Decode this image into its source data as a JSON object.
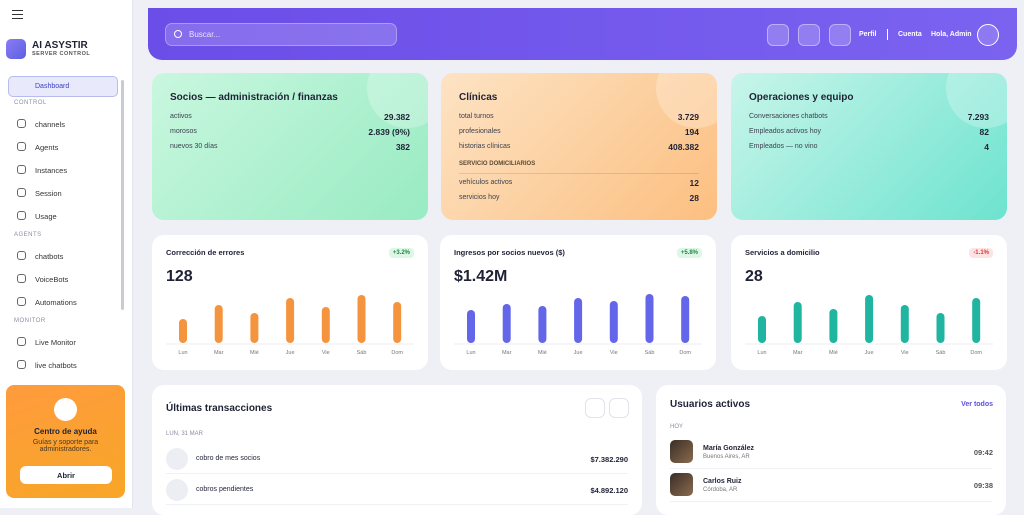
{
  "sidebar": {
    "brand": "AI ASYSTIR",
    "brand_sub": "SERVER CONTROL",
    "active": "Dashboard",
    "sections": [
      {
        "title": "CONTROL",
        "items": [
          "channels",
          "Agents",
          "Instances",
          "Session",
          "Usage"
        ]
      },
      {
        "title": "AGENTS",
        "items": [
          "chatbots",
          "VoiceBots",
          "Automations"
        ]
      },
      {
        "title": "MONITOR",
        "items": [
          "Live Monitor",
          "live chatbots"
        ]
      }
    ],
    "help": {
      "title": "Centro de ayuda",
      "text": "Guías y soporte para administradores.",
      "button": "Abrir"
    }
  },
  "header": {
    "search": "Buscar...",
    "links": [
      "Perfil",
      "Cuenta"
    ],
    "greeting": "Hola, Admin"
  },
  "stat_cards": [
    {
      "title": "Socios — administración / finanzas",
      "rows": [
        [
          "activos",
          "29.382"
        ],
        [
          "morosos",
          "2.839 (9%)"
        ],
        [
          "nuevos 30 días",
          "382"
        ]
      ]
    },
    {
      "title": "Clínicas",
      "rows": [
        [
          "total turnos",
          "3.729"
        ],
        [
          "profesionales",
          "194"
        ],
        [
          "historias clínicas",
          "408.382"
        ]
      ],
      "subsection": "SERVICIO DOMICILIARIOS",
      "subrows": [
        [
          "vehículos activos",
          "12"
        ],
        [
          "servicios hoy",
          "28"
        ]
      ]
    },
    {
      "title": "Operaciones y equipo",
      "rows": [
        [
          "Conversaciones chatbots",
          "7.293"
        ],
        [
          "Empleados activos hoy",
          "82"
        ],
        [
          "Empleados — no vino",
          "4"
        ]
      ]
    }
  ],
  "charts": [
    {
      "type": "bar",
      "title": "Corrección de errores",
      "value": "128",
      "badge": "+3.2%",
      "color": "#f5943f",
      "categories": [
        "Lun",
        "Mar",
        "Mié",
        "Jue",
        "Vie",
        "Sáb",
        "Dom"
      ],
      "values": [
        24,
        38,
        30,
        45,
        36,
        48,
        41
      ]
    },
    {
      "type": "bar",
      "title": "Ingresos por socios nuevos ($)",
      "value": "$1.42M",
      "badge": "+5.8%",
      "color": "#6366e8",
      "categories": [
        "Lun",
        "Mar",
        "Mié",
        "Jue",
        "Vie",
        "Sáb",
        "Dom"
      ],
      "values": [
        33,
        39,
        37,
        45,
        42,
        49,
        47
      ]
    },
    {
      "type": "bar",
      "title": "Servicios a domicilio",
      "value": "28",
      "badge": "-1.1%",
      "color": "#1fb5a0",
      "categories": [
        "Lun",
        "Mar",
        "Mié",
        "Jue",
        "Vie",
        "Sáb",
        "Dom"
      ],
      "values": [
        27,
        41,
        34,
        48,
        38,
        30,
        45
      ]
    }
  ],
  "transactions": {
    "title": "Últimas transacciones",
    "date": "LUN, 31 MAR",
    "rows": [
      [
        "cobro de mes socios",
        "$7.382.290"
      ],
      [
        "cobros pendientes",
        "$4.892.120"
      ]
    ]
  },
  "users": {
    "title": "Usuarios activos",
    "link": "Ver todos",
    "group": "HOY",
    "rows": [
      {
        "name": "María González",
        "place": "Buenos Aires, AR",
        "time": "09:42"
      },
      {
        "name": "Carlos Ruiz",
        "place": "Córdoba, AR",
        "time": "09:38"
      }
    ]
  }
}
